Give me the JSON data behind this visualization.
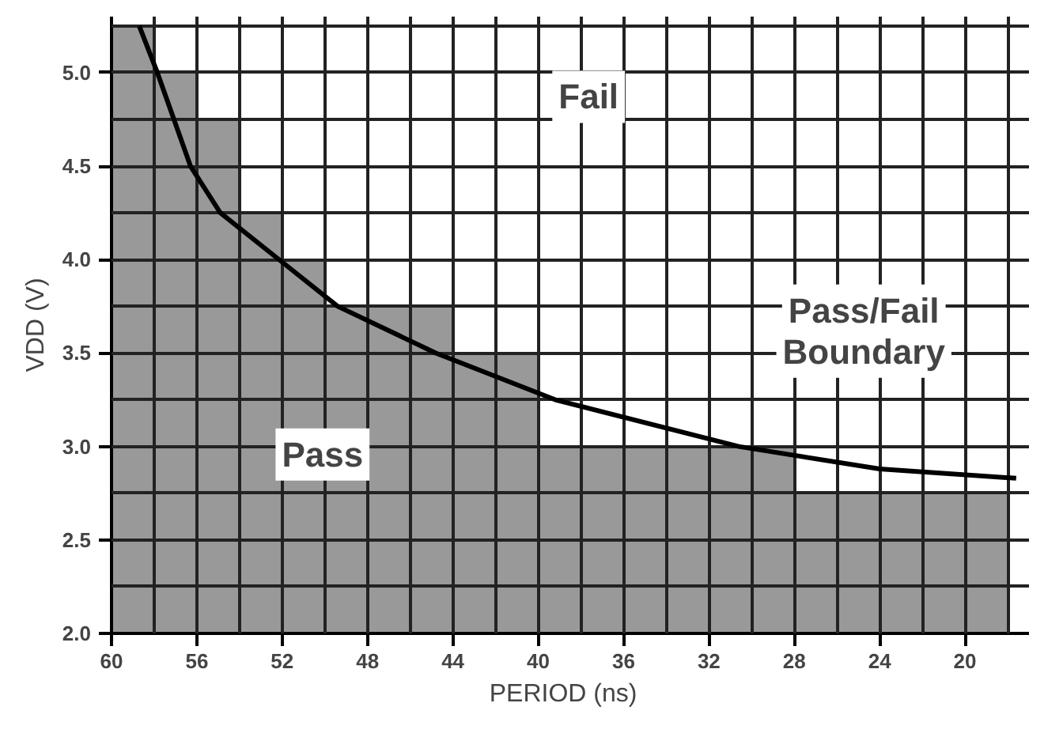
{
  "chart_data": {
    "type": "bar",
    "xlabel": "PERIOD   (ns)",
    "ylabel": "VDD (V)",
    "x": [
      59,
      57,
      55,
      53,
      51,
      49,
      47,
      45,
      43,
      41,
      39,
      37,
      35,
      33,
      31,
      29,
      27,
      25,
      23,
      21,
      19
    ],
    "series": [
      {
        "color": "#999999",
        "values": [
          5.25,
          5.0,
          4.75,
          4.25,
          4.0,
          3.75,
          3.75,
          3.75,
          3.5,
          3.5,
          3.0,
          3.0,
          3.0,
          3.0,
          3.0,
          3.0,
          2.75,
          2.75,
          2.75,
          2.75,
          2.75
        ]
      },
      {
        "type": "line",
        "color": "#000000",
        "x": [
          58.7,
          57.85,
          56.3,
          54.9,
          52.15,
          49.4,
          44.8,
          39.2,
          30.6,
          24,
          17.6
        ],
        "values": [
          5.25,
          5.0,
          4.5,
          4.25,
          4.0,
          3.75,
          3.5,
          3.25,
          3.0,
          2.88,
          2.83
        ]
      }
    ],
    "xlim": [
      60,
      17
    ],
    "ylim": [
      2.0,
      5.3
    ],
    "xticks": [
      60,
      {
        "value": 58,
        "label": null
      },
      56,
      {
        "value": 54,
        "label": null
      },
      52,
      {
        "value": 50,
        "label": null
      },
      48,
      {
        "value": 46,
        "label": null
      },
      44,
      {
        "value": 42,
        "label": null
      },
      40,
      {
        "value": 38,
        "label": null
      },
      36,
      {
        "value": 34,
        "label": null
      },
      32,
      {
        "value": 30,
        "label": null
      },
      28,
      {
        "value": 26,
        "label": null
      },
      24,
      {
        "value": 22,
        "label": null
      },
      20,
      {
        "value": 18,
        "label": null
      }
    ],
    "yticks": [
      {
        "value": 2,
        "label": "2.0"
      },
      {
        "value": 2.25,
        "label": null
      },
      {
        "value": 2.5,
        "label": "2.5"
      },
      {
        "value": 2.75,
        "label": null
      },
      {
        "value": 3,
        "label": "3.0"
      },
      {
        "value": 3.25,
        "label": null
      },
      {
        "value": 3.5,
        "label": "3.5"
      },
      {
        "value": 3.75,
        "label": null
      },
      {
        "value": 4,
        "label": "4.0"
      },
      {
        "value": 4.25,
        "label": null
      },
      {
        "value": 4.5,
        "label": "4.5"
      },
      {
        "value": 4.75,
        "label": null
      },
      {
        "value": 5,
        "label": "5.0"
      },
      {
        "value": 5.25,
        "label": null
      }
    ],
    "grid": true,
    "annotations": [
      "Fail",
      "Pass/Fail\nBoundary",
      "Pass"
    ]
  }
}
